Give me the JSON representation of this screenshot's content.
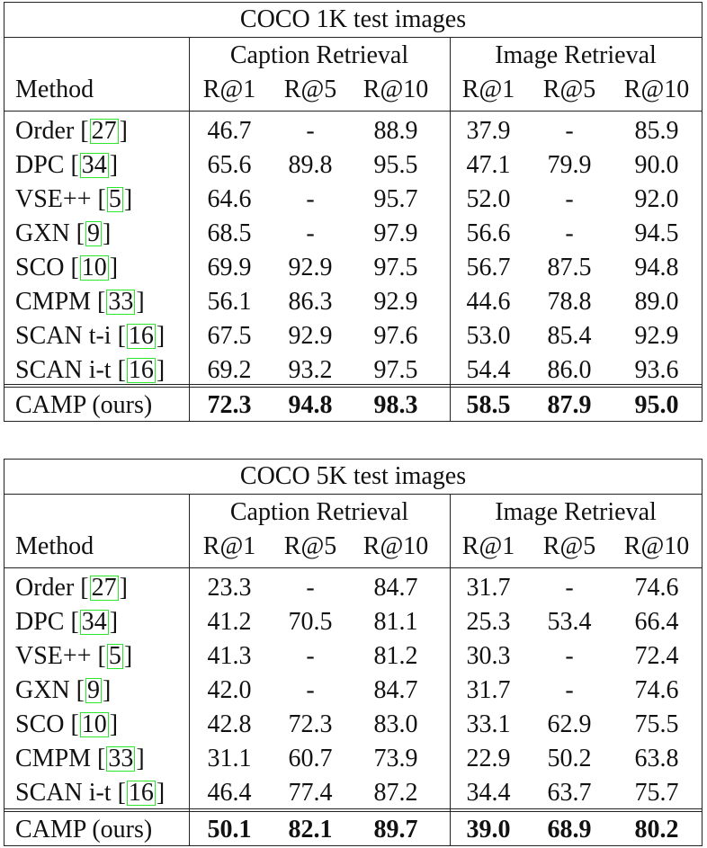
{
  "tables": [
    {
      "title": "COCO 1K test images",
      "group_caption": "Caption Retrieval",
      "group_image": "Image Retrieval",
      "col_method": "Method",
      "metrics": [
        "R@1",
        "R@5",
        "R@10",
        "R@1",
        "R@5",
        "R@10"
      ],
      "rows": [
        {
          "name": "Order",
          "ref": "27",
          "vals": [
            "46.7",
            "-",
            "88.9",
            "37.9",
            "-",
            "85.9"
          ]
        },
        {
          "name": "DPC",
          "ref": "34",
          "vals": [
            "65.6",
            "89.8",
            "95.5",
            "47.1",
            "79.9",
            "90.0"
          ]
        },
        {
          "name": "VSE++",
          "ref": "5",
          "vals": [
            "64.6",
            "-",
            "95.7",
            "52.0",
            "-",
            "92.0"
          ]
        },
        {
          "name": "GXN",
          "ref": "9",
          "vals": [
            "68.5",
            "-",
            "97.9",
            "56.6",
            "-",
            "94.5"
          ]
        },
        {
          "name": "SCO",
          "ref": "10",
          "vals": [
            "69.9",
            "92.9",
            "97.5",
            "56.7",
            "87.5",
            "94.8"
          ]
        },
        {
          "name": "CMPM",
          "ref": "33",
          "vals": [
            "56.1",
            "86.3",
            "92.9",
            "44.6",
            "78.8",
            "89.0"
          ]
        },
        {
          "name": "SCAN t-i",
          "ref": "16",
          "vals": [
            "67.5",
            "92.9",
            "97.6",
            "53.0",
            "85.4",
            "92.9"
          ]
        },
        {
          "name": "SCAN i-t",
          "ref": "16",
          "vals": [
            "69.2",
            "93.2",
            "97.5",
            "54.4",
            "86.0",
            "93.6"
          ]
        }
      ],
      "ours": {
        "name": "CAMP (ours)",
        "vals": [
          "72.3",
          "94.8",
          "98.3",
          "58.5",
          "87.9",
          "95.0"
        ]
      }
    },
    {
      "title": "COCO 5K test images",
      "group_caption": "Caption Retrieval",
      "group_image": "Image Retrieval",
      "col_method": "Method",
      "metrics": [
        "R@1",
        "R@5",
        "R@10",
        "R@1",
        "R@5",
        "R@10"
      ],
      "rows": [
        {
          "name": "Order",
          "ref": "27",
          "vals": [
            "23.3",
            "-",
            "84.7",
            "31.7",
            "-",
            "74.6"
          ]
        },
        {
          "name": "DPC",
          "ref": "34",
          "vals": [
            "41.2",
            "70.5",
            "81.1",
            "25.3",
            "53.4",
            "66.4"
          ]
        },
        {
          "name": "VSE++",
          "ref": "5",
          "vals": [
            "41.3",
            "-",
            "81.2",
            "30.3",
            "-",
            "72.4"
          ]
        },
        {
          "name": "GXN",
          "ref": "9",
          "vals": [
            "42.0",
            "-",
            "84.7",
            "31.7",
            "-",
            "74.6"
          ]
        },
        {
          "name": "SCO",
          "ref": "10",
          "vals": [
            "42.8",
            "72.3",
            "83.0",
            "33.1",
            "62.9",
            "75.5"
          ]
        },
        {
          "name": "CMPM",
          "ref": "33",
          "vals": [
            "31.1",
            "60.7",
            "73.9",
            "22.9",
            "50.2",
            "63.8"
          ]
        },
        {
          "name": "SCAN i-t",
          "ref": "16",
          "vals": [
            "46.4",
            "77.4",
            "87.2",
            "34.4",
            "63.7",
            "75.7"
          ]
        }
      ],
      "ours": {
        "name": "CAMP (ours)",
        "vals": [
          "50.1",
          "82.1",
          "89.7",
          "39.0",
          "68.9",
          "80.2"
        ]
      }
    }
  ]
}
